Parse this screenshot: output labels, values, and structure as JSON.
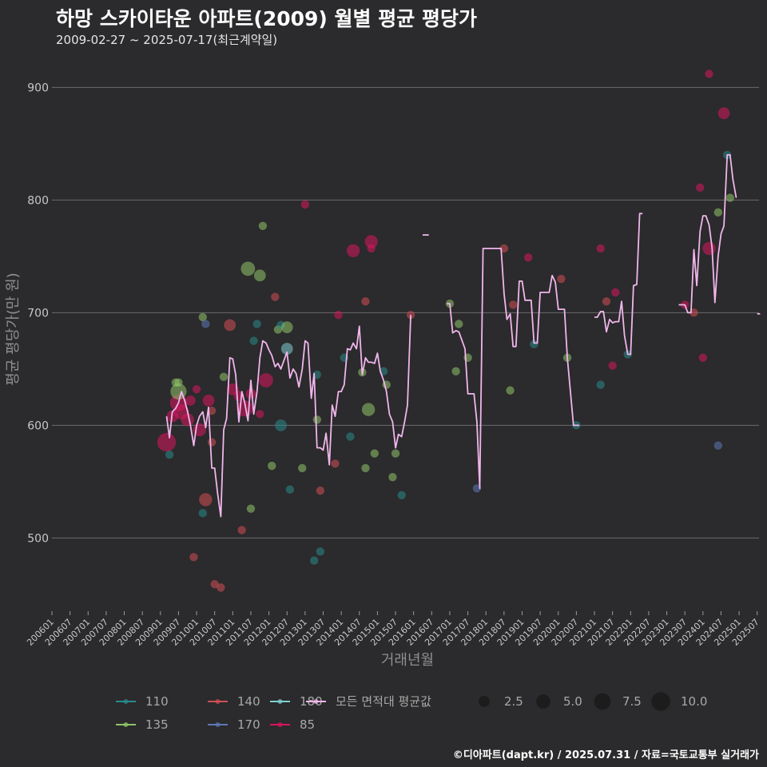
{
  "chart_data": {
    "type": "scatter",
    "title": "하망 스카이타운 아파트(2009) 월별 평균 평당가",
    "subtitle": "2009-02-27 ~ 2025-07-17(최근계약일)",
    "xlabel": "거래년월",
    "ylabel": "평균 평당가(만 원)",
    "caption": "©디아파트(dapt.kr) / 2025.07.31 / 자료=국토교통부 실거래가",
    "xlim": [
      2006.0,
      2025.55
    ],
    "ylim": [
      435,
      935
    ],
    "y_ticks": [
      500,
      600,
      700,
      800,
      900
    ],
    "x_ticks": [
      "200601",
      "200607",
      "200701",
      "200707",
      "200801",
      "200807",
      "200901",
      "200907",
      "201001",
      "201007",
      "201101",
      "201107",
      "201201",
      "201207",
      "201301",
      "201307",
      "201401",
      "201407",
      "201501",
      "201507",
      "201601",
      "201607",
      "201701",
      "201707",
      "201801",
      "201807",
      "201901",
      "201907",
      "202001",
      "202007",
      "202101",
      "202107",
      "202201",
      "202207",
      "202301",
      "202307",
      "202401",
      "202407",
      "202501",
      "202507"
    ],
    "grid": true,
    "legend_position": "bottom",
    "colors": {
      "110": "#2a8b8c",
      "135": "#8fc46a",
      "140": "#d24f56",
      "170": "#5d78b6",
      "180": "#7fcfd4",
      "85": "#d8155f",
      "avg": "#f0b6ec"
    },
    "legend": {
      "series": [
        {
          "key": "110",
          "label": "110"
        },
        {
          "key": "140",
          "label": "140"
        },
        {
          "key": "180",
          "label": "180"
        },
        {
          "key": "avg",
          "label": "모든 면적대 평균값"
        },
        {
          "key": "135",
          "label": "135"
        },
        {
          "key": "170",
          "label": "170"
        },
        {
          "key": "85",
          "label": "85"
        }
      ],
      "sizes": [
        {
          "value": 2.5,
          "label": "2.5"
        },
        {
          "value": 5.0,
          "label": "5.0"
        },
        {
          "value": 7.5,
          "label": "7.5"
        },
        {
          "value": 10.0,
          "label": "10.0"
        }
      ]
    },
    "average_line": [
      [
        2009.17,
        608
      ],
      [
        2009.25,
        589
      ],
      [
        2009.33,
        612
      ],
      [
        2009.42,
        615
      ],
      [
        2009.5,
        620
      ],
      [
        2009.58,
        630
      ],
      [
        2009.67,
        622
      ],
      [
        2009.75,
        612
      ],
      [
        2009.83,
        600
      ],
      [
        2009.92,
        582
      ],
      [
        2010.0,
        600
      ],
      [
        2010.08,
        608
      ],
      [
        2010.17,
        612
      ],
      [
        2010.25,
        598
      ],
      [
        2010.33,
        616
      ],
      [
        2010.42,
        562
      ],
      [
        2010.5,
        562
      ],
      [
        2010.58,
        540
      ],
      [
        2010.67,
        519
      ],
      [
        2010.75,
        596
      ],
      [
        2010.83,
        606
      ],
      [
        2010.92,
        660
      ],
      [
        2011.0,
        659
      ],
      [
        2011.08,
        645
      ],
      [
        2011.17,
        603
      ],
      [
        2011.25,
        630
      ],
      [
        2011.33,
        620
      ],
      [
        2011.42,
        604
      ],
      [
        2011.5,
        640
      ],
      [
        2011.58,
        610
      ],
      [
        2011.67,
        630
      ],
      [
        2011.75,
        660
      ],
      [
        2011.83,
        675
      ],
      [
        2011.92,
        673
      ],
      [
        2012.0,
        667
      ],
      [
        2012.08,
        662
      ],
      [
        2012.17,
        652
      ],
      [
        2012.25,
        655
      ],
      [
        2012.33,
        650
      ],
      [
        2012.42,
        658
      ],
      [
        2012.5,
        665
      ],
      [
        2012.58,
        642
      ],
      [
        2012.67,
        650
      ],
      [
        2012.75,
        646
      ],
      [
        2012.83,
        634
      ],
      [
        2012.92,
        650
      ],
      [
        2013.0,
        675
      ],
      [
        2013.08,
        673
      ],
      [
        2013.17,
        624
      ],
      [
        2013.25,
        646
      ],
      [
        2013.33,
        580
      ],
      [
        2013.42,
        580
      ],
      [
        2013.5,
        578
      ],
      [
        2013.58,
        593
      ],
      [
        2013.67,
        565
      ],
      [
        2013.75,
        618
      ],
      [
        2013.83,
        608
      ],
      [
        2013.92,
        630
      ],
      [
        2014.0,
        630
      ],
      [
        2014.08,
        636
      ],
      [
        2014.17,
        668
      ],
      [
        2014.25,
        667
      ],
      [
        2014.33,
        673
      ],
      [
        2014.42,
        668
      ],
      [
        2014.5,
        688
      ],
      [
        2014.58,
        645
      ],
      [
        2014.67,
        660
      ],
      [
        2014.75,
        656
      ],
      [
        2014.83,
        656
      ],
      [
        2014.92,
        655
      ],
      [
        2015.0,
        664
      ],
      [
        2015.08,
        648
      ],
      [
        2015.17,
        640
      ],
      [
        2015.25,
        630
      ],
      [
        2015.33,
        610
      ],
      [
        2015.42,
        603
      ],
      [
        2015.5,
        580
      ],
      [
        2015.58,
        592
      ],
      [
        2015.67,
        590
      ],
      [
        2015.75,
        603
      ],
      [
        2015.83,
        618
      ],
      [
        2015.92,
        698
      ],
      null,
      [
        2016.25,
        769
      ],
      [
        2016.42,
        769
      ],
      null,
      [
        2016.92,
        708
      ],
      [
        2017.0,
        708
      ],
      [
        2017.08,
        682
      ],
      [
        2017.17,
        684
      ],
      [
        2017.25,
        683
      ],
      [
        2017.33,
        676
      ],
      [
        2017.42,
        668
      ],
      [
        2017.5,
        628
      ],
      [
        2017.58,
        628
      ],
      [
        2017.67,
        628
      ],
      [
        2017.75,
        603
      ],
      [
        2017.83,
        544
      ],
      [
        2017.92,
        757
      ],
      [
        2018.08,
        757
      ],
      [
        2018.42,
        757
      ],
      [
        2018.5,
        717
      ],
      [
        2018.58,
        694
      ],
      [
        2018.67,
        699
      ],
      [
        2018.75,
        670
      ],
      [
        2018.83,
        670
      ],
      [
        2018.92,
        728
      ],
      [
        2019.0,
        728
      ],
      [
        2019.08,
        711
      ],
      [
        2019.17,
        711
      ],
      [
        2019.25,
        711
      ],
      [
        2019.33,
        673
      ],
      [
        2019.42,
        673
      ],
      [
        2019.5,
        718
      ],
      [
        2019.58,
        718
      ],
      [
        2019.67,
        718
      ],
      [
        2019.75,
        718
      ],
      [
        2019.83,
        733
      ],
      [
        2019.92,
        727
      ],
      [
        2020.0,
        703
      ],
      [
        2020.08,
        703
      ],
      [
        2020.17,
        703
      ],
      [
        2020.25,
        660
      ],
      [
        2020.42,
        600
      ],
      [
        2020.58,
        600
      ],
      null,
      [
        2021.0,
        696
      ],
      [
        2021.08,
        696
      ],
      [
        2021.17,
        701
      ],
      [
        2021.25,
        701
      ],
      [
        2021.33,
        683
      ],
      [
        2021.42,
        694
      ],
      [
        2021.5,
        691
      ],
      [
        2021.58,
        692
      ],
      [
        2021.67,
        692
      ],
      [
        2021.75,
        710
      ],
      [
        2021.83,
        680
      ],
      [
        2021.92,
        663
      ],
      [
        2022.0,
        663
      ],
      [
        2022.08,
        724
      ],
      [
        2022.17,
        725
      ],
      [
        2022.25,
        788
      ],
      [
        2022.33,
        788
      ],
      null,
      [
        2023.33,
        707
      ],
      [
        2023.5,
        707
      ],
      [
        2023.58,
        700
      ],
      [
        2023.67,
        700
      ],
      [
        2023.75,
        756
      ],
      [
        2023.83,
        724
      ],
      [
        2023.92,
        772
      ],
      [
        2024.0,
        786
      ],
      [
        2024.08,
        786
      ],
      [
        2024.17,
        778
      ],
      [
        2024.25,
        758
      ],
      [
        2024.33,
        709
      ],
      [
        2024.42,
        750
      ],
      [
        2024.5,
        770
      ],
      [
        2024.58,
        777
      ],
      [
        2024.67,
        840
      ],
      [
        2024.75,
        840
      ],
      [
        2024.83,
        818
      ],
      [
        2024.92,
        802
      ],
      null,
      [
        2025.5,
        699
      ],
      [
        2025.58,
        699
      ]
    ],
    "points": [
      {
        "s": "85",
        "x": 2009.17,
        "y": 585,
        "n": 10
      },
      {
        "s": "85",
        "x": 2009.33,
        "y": 608,
        "n": 3
      },
      {
        "s": "85",
        "x": 2009.5,
        "y": 620,
        "n": 8
      },
      {
        "s": "135",
        "x": 2009.5,
        "y": 630,
        "n": 7
      },
      {
        "s": "85",
        "x": 2009.58,
        "y": 612,
        "n": 6
      },
      {
        "s": "135",
        "x": 2009.42,
        "y": 638,
        "n": 1
      },
      {
        "s": "135",
        "x": 2009.5,
        "y": 638,
        "n": 1
      },
      {
        "s": "110",
        "x": 2009.25,
        "y": 574,
        "n": 1
      },
      {
        "s": "85",
        "x": 2009.75,
        "y": 605,
        "n": 4
      },
      {
        "s": "85",
        "x": 2009.83,
        "y": 622,
        "n": 2
      },
      {
        "s": "140",
        "x": 2009.92,
        "y": 483,
        "n": 1
      },
      {
        "s": "85",
        "x": 2010.08,
        "y": 596,
        "n": 4
      },
      {
        "s": "85",
        "x": 2010.0,
        "y": 632,
        "n": 1
      },
      {
        "s": "85",
        "x": 2010.33,
        "y": 622,
        "n": 3
      },
      {
        "s": "140",
        "x": 2010.25,
        "y": 534,
        "n": 4
      },
      {
        "s": "110",
        "x": 2010.17,
        "y": 522,
        "n": 1
      },
      {
        "s": "135",
        "x": 2010.17,
        "y": 696,
        "n": 1
      },
      {
        "s": "170",
        "x": 2010.25,
        "y": 690,
        "n": 1
      },
      {
        "s": "140",
        "x": 2010.42,
        "y": 613,
        "n": 1
      },
      {
        "s": "140",
        "x": 2010.42,
        "y": 585,
        "n": 1
      },
      {
        "s": "140",
        "x": 2010.5,
        "y": 459,
        "n": 1
      },
      {
        "s": "140",
        "x": 2010.67,
        "y": 456,
        "n": 1
      },
      {
        "s": "135",
        "x": 2010.75,
        "y": 643,
        "n": 1
      },
      {
        "s": "140",
        "x": 2010.92,
        "y": 689,
        "n": 3
      },
      {
        "s": "85",
        "x": 2011.0,
        "y": 632,
        "n": 3
      },
      {
        "s": "85",
        "x": 2011.17,
        "y": 626,
        "n": 2
      },
      {
        "s": "85",
        "x": 2011.33,
        "y": 615,
        "n": 7
      },
      {
        "s": "140",
        "x": 2011.25,
        "y": 507,
        "n": 1
      },
      {
        "s": "135",
        "x": 2011.42,
        "y": 739,
        "n": 5
      },
      {
        "s": "135",
        "x": 2011.5,
        "y": 526,
        "n": 1
      },
      {
        "s": "85",
        "x": 2011.5,
        "y": 628,
        "n": 2
      },
      {
        "s": "110",
        "x": 2011.58,
        "y": 675,
        "n": 1
      },
      {
        "s": "135",
        "x": 2011.75,
        "y": 733,
        "n": 3
      },
      {
        "s": "110",
        "x": 2011.67,
        "y": 690,
        "n": 1
      },
      {
        "s": "135",
        "x": 2011.83,
        "y": 777,
        "n": 1
      },
      {
        "s": "85",
        "x": 2011.75,
        "y": 610,
        "n": 1
      },
      {
        "s": "85",
        "x": 2011.92,
        "y": 640,
        "n": 5
      },
      {
        "s": "135",
        "x": 2012.08,
        "y": 564,
        "n": 1
      },
      {
        "s": "140",
        "x": 2012.17,
        "y": 714,
        "n": 1
      },
      {
        "s": "110",
        "x": 2012.33,
        "y": 600,
        "n": 3
      },
      {
        "s": "135",
        "x": 2012.25,
        "y": 685,
        "n": 1
      },
      {
        "s": "110",
        "x": 2012.33,
        "y": 689,
        "n": 1
      },
      {
        "s": "135",
        "x": 2012.5,
        "y": 687,
        "n": 3
      },
      {
        "s": "180",
        "x": 2012.5,
        "y": 668,
        "n": 3
      },
      {
        "s": "110",
        "x": 2012.58,
        "y": 543,
        "n": 1
      },
      {
        "s": "135",
        "x": 2012.92,
        "y": 562,
        "n": 1
      },
      {
        "s": "85",
        "x": 2013.0,
        "y": 796,
        "n": 1
      },
      {
        "s": "110",
        "x": 2013.25,
        "y": 480,
        "n": 1
      },
      {
        "s": "110",
        "x": 2013.42,
        "y": 488,
        "n": 1
      },
      {
        "s": "110",
        "x": 2013.33,
        "y": 645,
        "n": 1
      },
      {
        "s": "140",
        "x": 2013.42,
        "y": 542,
        "n": 1
      },
      {
        "s": "135",
        "x": 2013.33,
        "y": 605,
        "n": 1
      },
      {
        "s": "140",
        "x": 2013.83,
        "y": 566,
        "n": 1
      },
      {
        "s": "85",
        "x": 2013.92,
        "y": 698,
        "n": 1
      },
      {
        "s": "110",
        "x": 2014.08,
        "y": 660,
        "n": 1
      },
      {
        "s": "110",
        "x": 2014.25,
        "y": 590,
        "n": 1
      },
      {
        "s": "85",
        "x": 2014.33,
        "y": 755,
        "n": 4
      },
      {
        "s": "140",
        "x": 2014.67,
        "y": 710,
        "n": 1
      },
      {
        "s": "135",
        "x": 2014.58,
        "y": 647,
        "n": 1
      },
      {
        "s": "135",
        "x": 2014.75,
        "y": 614,
        "n": 4
      },
      {
        "s": "85",
        "x": 2014.83,
        "y": 763,
        "n": 4
      },
      {
        "s": "85",
        "x": 2014.83,
        "y": 757,
        "n": 1
      },
      {
        "s": "135",
        "x": 2014.67,
        "y": 562,
        "n": 1
      },
      {
        "s": "135",
        "x": 2014.92,
        "y": 575,
        "n": 1
      },
      {
        "s": "110",
        "x": 2015.17,
        "y": 648,
        "n": 1
      },
      {
        "s": "135",
        "x": 2015.25,
        "y": 636,
        "n": 1
      },
      {
        "s": "135",
        "x": 2015.42,
        "y": 554,
        "n": 1
      },
      {
        "s": "135",
        "x": 2015.5,
        "y": 575,
        "n": 1
      },
      {
        "s": "110",
        "x": 2015.67,
        "y": 538,
        "n": 1
      },
      {
        "s": "140",
        "x": 2015.92,
        "y": 698,
        "n": 1
      },
      {
        "s": "135",
        "x": 2017.0,
        "y": 708,
        "n": 1
      },
      {
        "s": "135",
        "x": 2017.25,
        "y": 690,
        "n": 1
      },
      {
        "s": "135",
        "x": 2017.17,
        "y": 648,
        "n": 1
      },
      {
        "s": "135",
        "x": 2017.5,
        "y": 660,
        "n": 1
      },
      {
        "s": "170",
        "x": 2017.75,
        "y": 544,
        "n": 1
      },
      {
        "s": "140",
        "x": 2018.5,
        "y": 757,
        "n": 1
      },
      {
        "s": "135",
        "x": 2018.67,
        "y": 631,
        "n": 1
      },
      {
        "s": "140",
        "x": 2018.75,
        "y": 707,
        "n": 1
      },
      {
        "s": "85",
        "x": 2019.17,
        "y": 749,
        "n": 1
      },
      {
        "s": "110",
        "x": 2019.33,
        "y": 672,
        "n": 1
      },
      {
        "s": "140",
        "x": 2020.08,
        "y": 730,
        "n": 1
      },
      {
        "s": "135",
        "x": 2020.25,
        "y": 660,
        "n": 1
      },
      {
        "s": "110",
        "x": 2020.5,
        "y": 600,
        "n": 1
      },
      {
        "s": "85",
        "x": 2021.17,
        "y": 757,
        "n": 1
      },
      {
        "s": "110",
        "x": 2021.17,
        "y": 636,
        "n": 1
      },
      {
        "s": "140",
        "x": 2021.33,
        "y": 710,
        "n": 1
      },
      {
        "s": "85",
        "x": 2021.58,
        "y": 718,
        "n": 1
      },
      {
        "s": "85",
        "x": 2021.5,
        "y": 653,
        "n": 1
      },
      {
        "s": "110",
        "x": 2021.92,
        "y": 663,
        "n": 1
      },
      {
        "s": "85",
        "x": 2023.5,
        "y": 707,
        "n": 1
      },
      {
        "s": "140",
        "x": 2023.75,
        "y": 700,
        "n": 1
      },
      {
        "s": "85",
        "x": 2023.92,
        "y": 811,
        "n": 1
      },
      {
        "s": "85",
        "x": 2024.0,
        "y": 660,
        "n": 1
      },
      {
        "s": "85",
        "x": 2024.17,
        "y": 757,
        "n": 4
      },
      {
        "s": "85",
        "x": 2024.17,
        "y": 912,
        "n": 1
      },
      {
        "s": "135",
        "x": 2024.42,
        "y": 789,
        "n": 1
      },
      {
        "s": "170",
        "x": 2024.42,
        "y": 582,
        "n": 1
      },
      {
        "s": "85",
        "x": 2024.58,
        "y": 877,
        "n": 3
      },
      {
        "s": "110",
        "x": 2024.67,
        "y": 840,
        "n": 1
      },
      {
        "s": "135",
        "x": 2024.75,
        "y": 802,
        "n": 1
      }
    ]
  }
}
